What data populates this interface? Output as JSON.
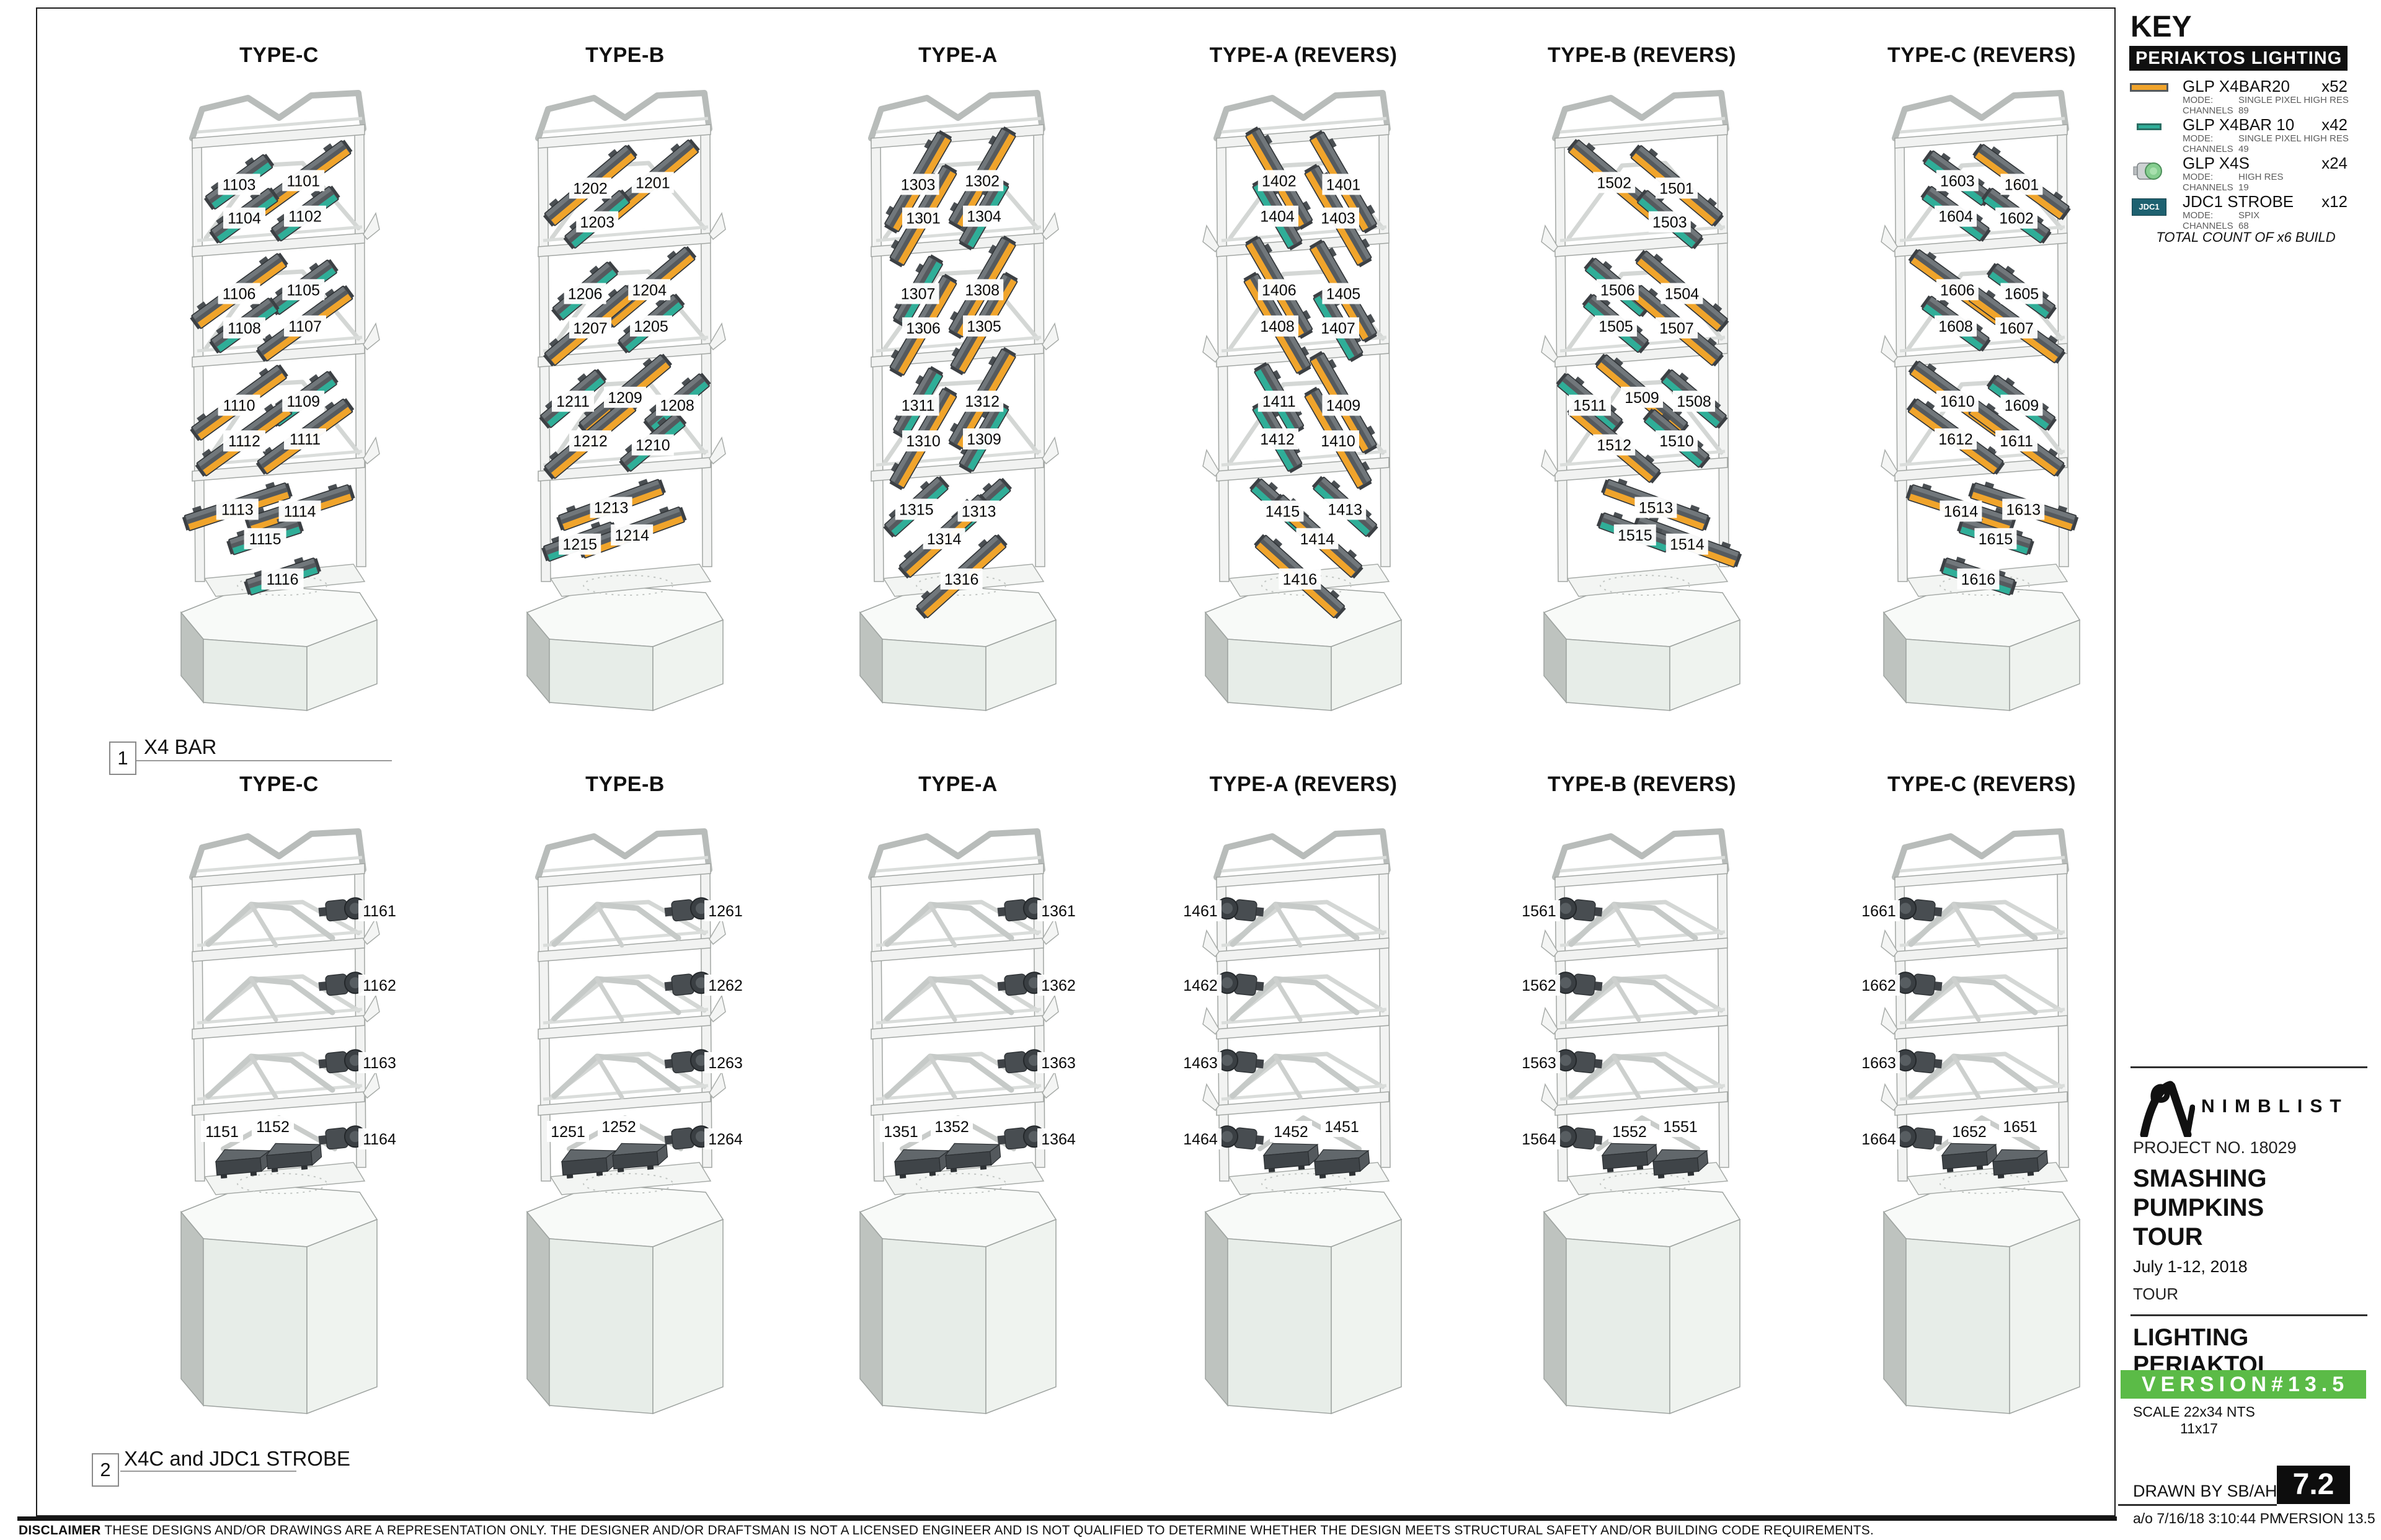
{
  "colors": {
    "bar20_orange": "#F0A42B",
    "bar10_teal": "#2FAE98",
    "x4s_green": "#85CE8F",
    "jdc1_teal": "#1E6170",
    "version_green": "#5BBB47",
    "banner_black": "#101010"
  },
  "key": {
    "title": "KEY",
    "banner": "PERIAKTOS LIGHTING",
    "items": [
      {
        "icon": "x4bar20-icon",
        "name": "GLP X4BAR20",
        "count": "x52",
        "mode_label": "MODE:",
        "mode": "SINGLE PIXEL HIGH RES",
        "channels_label": "CHANNELS",
        "channels": "89"
      },
      {
        "icon": "x4bar10-icon",
        "name": "GLP X4BAR 10",
        "count": "x42",
        "mode_label": "MODE:",
        "mode": "SINGLE PIXEL HIGH RES",
        "channels_label": "CHANNELS",
        "channels": "49"
      },
      {
        "icon": "x4s-icon",
        "name": "GLP X4S",
        "count": "x24",
        "mode_label": "MODE:",
        "mode": "HIGH RES",
        "channels_label": "CHANNELS",
        "channels": "19"
      },
      {
        "icon": "jdc1-icon",
        "icon_text": "JDC1",
        "name": "JDC1 STROBE",
        "count": "x12",
        "mode_label": "MODE:",
        "mode": "SPIX",
        "channels_label": "CHANNELS",
        "channels": "68"
      }
    ],
    "total_note": "TOTAL COUNT OF x6 BUILD"
  },
  "sections": [
    {
      "number": "1",
      "label": "X4 BAR"
    },
    {
      "number": "2",
      "label": "X4C and JDC1 STROBE"
    }
  ],
  "row1": {
    "towers": [
      {
        "title": "TYPE-C",
        "style": "c",
        "reversed": false,
        "tiers": [
          [
            {
              "n": "1103",
              "k": "bar10"
            },
            {
              "n": "1101",
              "k": "bar20"
            },
            {
              "n": "1104",
              "k": "bar10"
            },
            {
              "n": "1102",
              "k": "bar10"
            }
          ],
          [
            {
              "n": "1106",
              "k": "bar20"
            },
            {
              "n": "1105",
              "k": "bar10"
            },
            {
              "n": "1108",
              "k": "bar10"
            },
            {
              "n": "1107",
              "k": "bar20"
            }
          ],
          [
            {
              "n": "1110",
              "k": "bar20"
            },
            {
              "n": "1109",
              "k": "bar10"
            },
            {
              "n": "1112",
              "k": "bar20"
            },
            {
              "n": "1111",
              "k": "bar20"
            }
          ],
          [
            {
              "n": "1113",
              "k": "bar20"
            },
            {
              "n": "1114",
              "k": "bar20"
            },
            {
              "n": "1115",
              "k": "bar10"
            },
            {
              "n": "1116",
              "k": "bar10"
            }
          ]
        ]
      },
      {
        "title": "TYPE-B",
        "style": "b",
        "reversed": false,
        "tiers": [
          [
            {
              "n": "1202",
              "k": "bar20"
            },
            {
              "n": "1201",
              "k": "bar20"
            },
            {
              "n": "1203",
              "k": "bar10"
            }
          ],
          [
            {
              "n": "1206",
              "k": "bar10"
            },
            {
              "n": "1204",
              "k": "bar20"
            },
            {
              "n": "1207",
              "k": "bar20"
            },
            {
              "n": "1205",
              "k": "bar10"
            }
          ],
          [
            {
              "n": "1211",
              "k": "bar10"
            },
            {
              "n": "1209",
              "k": "bar20"
            },
            {
              "n": "1208",
              "k": "bar10"
            },
            {
              "n": "1212",
              "k": "bar20"
            },
            {
              "n": "1210",
              "k": "bar10"
            }
          ],
          [
            {
              "n": "1213",
              "k": "bar20"
            },
            {
              "n": "1215",
              "k": "bar10"
            },
            {
              "n": "1214",
              "k": "bar20"
            }
          ]
        ]
      },
      {
        "title": "TYPE-A",
        "style": "a",
        "reversed": false,
        "tiers": [
          [
            {
              "n": "1303",
              "k": "bar20"
            },
            {
              "n": "1302",
              "k": "bar20"
            },
            {
              "n": "1301",
              "k": "bar20"
            },
            {
              "n": "1304",
              "k": "bar10"
            }
          ],
          [
            {
              "n": "1307",
              "k": "bar10"
            },
            {
              "n": "1308",
              "k": "bar20"
            },
            {
              "n": "1306",
              "k": "bar20"
            },
            {
              "n": "1305",
              "k": "bar20"
            }
          ],
          [
            {
              "n": "1311",
              "k": "bar10"
            },
            {
              "n": "1312",
              "k": "bar20"
            },
            {
              "n": "1310",
              "k": "bar20"
            },
            {
              "n": "1309",
              "k": "bar10"
            }
          ],
          [
            {
              "n": "1315",
              "k": "bar10"
            },
            {
              "n": "1313",
              "k": "bar10"
            },
            {
              "n": "1314",
              "k": "bar20"
            },
            {
              "n": "1316",
              "k": "bar20"
            }
          ]
        ]
      },
      {
        "title": "TYPE-A (REVERS)",
        "style": "a",
        "reversed": true,
        "tiers": [
          [
            {
              "n": "1401",
              "k": "bar20"
            },
            {
              "n": "1402",
              "k": "bar20"
            },
            {
              "n": "1403",
              "k": "bar20"
            },
            {
              "n": "1404",
              "k": "bar10"
            }
          ],
          [
            {
              "n": "1405",
              "k": "bar20"
            },
            {
              "n": "1406",
              "k": "bar20"
            },
            {
              "n": "1407",
              "k": "bar10"
            },
            {
              "n": "1408",
              "k": "bar20"
            }
          ],
          [
            {
              "n": "1409",
              "k": "bar20"
            },
            {
              "n": "1411",
              "k": "bar10"
            },
            {
              "n": "1410",
              "k": "bar20"
            },
            {
              "n": "1412",
              "k": "bar10"
            }
          ],
          [
            {
              "n": "1413",
              "k": "bar10"
            },
            {
              "n": "1415",
              "k": "bar10"
            },
            {
              "n": "1414",
              "k": "bar20"
            },
            {
              "n": "1416",
              "k": "bar20"
            }
          ]
        ]
      },
      {
        "title": "TYPE-B (REVERS)",
        "style": "b",
        "reversed": true,
        "tiers": [
          [
            {
              "n": "1501",
              "k": "bar20"
            },
            {
              "n": "1502",
              "k": "bar20"
            },
            {
              "n": "1503",
              "k": "bar10"
            }
          ],
          [
            {
              "n": "1504",
              "k": "bar20"
            },
            {
              "n": "1506",
              "k": "bar10"
            },
            {
              "n": "1507",
              "k": "bar20"
            },
            {
              "n": "1505",
              "k": "bar10"
            }
          ],
          [
            {
              "n": "1508",
              "k": "bar10"
            },
            {
              "n": "1509",
              "k": "bar20"
            },
            {
              "n": "1511",
              "k": "bar10"
            },
            {
              "n": "1510",
              "k": "bar10"
            },
            {
              "n": "1512",
              "k": "bar20"
            }
          ],
          [
            {
              "n": "1513",
              "k": "bar20"
            },
            {
              "n": "1514",
              "k": "bar20"
            },
            {
              "n": "1515",
              "k": "bar10"
            }
          ]
        ]
      },
      {
        "title": "TYPE-C (REVERS)",
        "style": "c",
        "reversed": true,
        "tiers": [
          [
            {
              "n": "1601",
              "k": "bar20"
            },
            {
              "n": "1603",
              "k": "bar10"
            },
            {
              "n": "1602",
              "k": "bar10"
            },
            {
              "n": "1604",
              "k": "bar10"
            }
          ],
          [
            {
              "n": "1605",
              "k": "bar10"
            },
            {
              "n": "1606",
              "k": "bar20"
            },
            {
              "n": "1607",
              "k": "bar20"
            },
            {
              "n": "1608",
              "k": "bar10"
            }
          ],
          [
            {
              "n": "1609",
              "k": "bar10"
            },
            {
              "n": "1610",
              "k": "bar20"
            },
            {
              "n": "1611",
              "k": "bar20"
            },
            {
              "n": "1612",
              "k": "bar20"
            }
          ],
          [
            {
              "n": "1613",
              "k": "bar20"
            },
            {
              "n": "1614",
              "k": "bar20"
            },
            {
              "n": "1615",
              "k": "bar10"
            },
            {
              "n": "1616",
              "k": "bar10"
            }
          ]
        ]
      }
    ]
  },
  "row2": {
    "towers": [
      {
        "title": "TYPE-C",
        "reversed": false,
        "x4s": [
          "1161",
          "1162",
          "1163"
        ],
        "deck_strobes": [
          "1151",
          "1152"
        ],
        "deck_x4s": "1164"
      },
      {
        "title": "TYPE-B",
        "reversed": false,
        "x4s": [
          "1261",
          "1262",
          "1263"
        ],
        "deck_strobes": [
          "1251",
          "1252"
        ],
        "deck_x4s": "1264"
      },
      {
        "title": "TYPE-A",
        "reversed": false,
        "x4s": [
          "1361",
          "1362",
          "1363"
        ],
        "deck_strobes": [
          "1351",
          "1352"
        ],
        "deck_x4s": "1364"
      },
      {
        "title": "TYPE-A (REVERS)",
        "reversed": true,
        "x4s": [
          "1461",
          "1462",
          "1463"
        ],
        "deck_strobes": [
          "1452",
          "1451"
        ],
        "deck_x4s": "1464"
      },
      {
        "title": "TYPE-B (REVERS)",
        "reversed": true,
        "x4s": [
          "1561",
          "1562",
          "1563"
        ],
        "deck_strobes": [
          "1552",
          "1551"
        ],
        "deck_x4s": "1564"
      },
      {
        "title": "TYPE-C (REVERS)",
        "reversed": true,
        "x4s": [
          "1661",
          "1662",
          "1663"
        ],
        "deck_strobes": [
          "1652",
          "1651"
        ],
        "deck_x4s": "1664"
      }
    ]
  },
  "titleblock": {
    "logo_text": "NIMBLIST",
    "project_no": "PROJECT NO. 18029",
    "show_title": "SMASHING\nPUMPKINS\nTOUR",
    "dates": "July 1-12, 2018",
    "tour_label": "TOUR",
    "sheet_title": "LIGHTING PERIAKTOI",
    "version_banner": "VERSION#13.5",
    "scale_line1": "SCALE 22x34 NTS",
    "scale_line2": "11x17",
    "drawn_by": "DRAWN BY SB/AH",
    "page_number": "7.2",
    "timestamp": "a/o 7/16/18 3:10:44 PM",
    "version_label": "VERSION 13.5"
  },
  "footer": {
    "disclaimer_label": "DISCLAIMER",
    "disclaimer_text": "THESE DESIGNS AND/OR DRAWINGS ARE A REPRESENTATION ONLY. THE DESIGNER AND/OR DRAFTSMAN IS NOT A LICENSED ENGINEER AND IS NOT QUALIFIED TO DETERMINE WHETHER THE DESIGN MEETS STRUCTURAL SAFETY AND/OR BUILDING CODE REQUIREMENTS."
  }
}
